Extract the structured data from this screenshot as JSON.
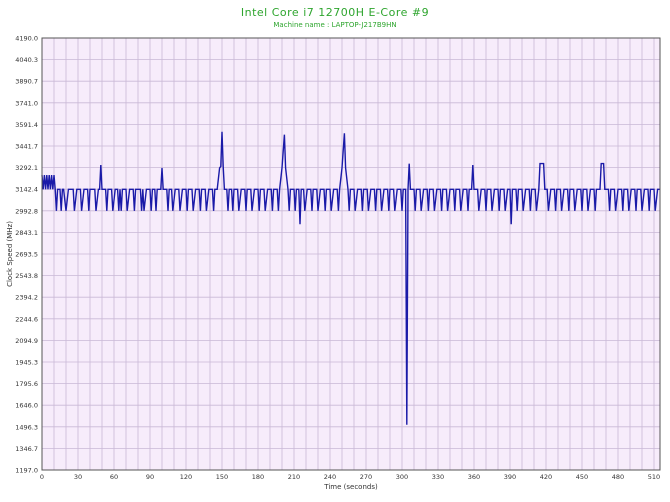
{
  "chart_data": {
    "type": "line",
    "title": "Intel Core i7 12700H E-Core #9",
    "subtitle": "Machine name : LAPTOP-J217B9HN",
    "xlabel": "Time (seconds)",
    "ylabel": "Clock Speed (MHz)",
    "xlim": [
      0,
      515
    ],
    "ylim": [
      1197.0,
      4190.0
    ],
    "x_ticks": [
      0,
      30,
      60,
      90,
      120,
      150,
      180,
      210,
      240,
      270,
      300,
      330,
      360,
      390,
      420,
      450,
      480,
      510
    ],
    "y_ticks": [
      "1197.0",
      "1346.7",
      "1496.3",
      "1646.0",
      "1795.6",
      "1945.3",
      "2094.9",
      "2244.6",
      "2394.2",
      "2543.8",
      "2693.5",
      "2843.1",
      "2992.8",
      "3142.4",
      "3292.1",
      "3441.7",
      "3591.4",
      "3741.0",
      "3890.7",
      "4040.3",
      "4190.0"
    ],
    "grid": true,
    "background": "#f7ecfb",
    "grid_color": "#c9b8d6",
    "line_color": "#1a1aa8",
    "text_color": "#2ea52e",
    "series": [
      {
        "points": [
          [
            0,
            3240
          ],
          [
            1,
            3142
          ],
          [
            2,
            3240
          ],
          [
            3,
            3142
          ],
          [
            4,
            3240
          ],
          [
            5,
            3142
          ],
          [
            6,
            3240
          ],
          [
            7,
            3142
          ],
          [
            8,
            3240
          ],
          [
            9,
            3142
          ],
          [
            10,
            3240
          ],
          [
            11,
            3142
          ],
          [
            12,
            2993
          ],
          [
            13,
            3142
          ],
          [
            14,
            3142
          ],
          [
            15,
            3142
          ],
          [
            16,
            2993
          ],
          [
            17,
            3142
          ],
          [
            18,
            3142
          ],
          [
            20,
            2993
          ],
          [
            22,
            3142
          ],
          [
            26,
            3142
          ],
          [
            27,
            2993
          ],
          [
            29,
            3142
          ],
          [
            32,
            3142
          ],
          [
            33,
            2993
          ],
          [
            35,
            3142
          ],
          [
            38,
            3142
          ],
          [
            39,
            2993
          ],
          [
            40,
            3142
          ],
          [
            44,
            3142
          ],
          [
            45,
            2993
          ],
          [
            47,
            3142
          ],
          [
            48,
            3142
          ],
          [
            49,
            3310
          ],
          [
            50,
            3142
          ],
          [
            53,
            3142
          ],
          [
            54,
            2993
          ],
          [
            55,
            3142
          ],
          [
            58,
            3142
          ],
          [
            59,
            2993
          ],
          [
            61,
            3142
          ],
          [
            63,
            3142
          ],
          [
            64,
            2993
          ],
          [
            65,
            3142
          ],
          [
            66,
            2993
          ],
          [
            67,
            3142
          ],
          [
            70,
            3142
          ],
          [
            71,
            2993
          ],
          [
            73,
            3142
          ],
          [
            76,
            3142
          ],
          [
            77,
            2993
          ],
          [
            78,
            3142
          ],
          [
            82,
            3142
          ],
          [
            83,
            2993
          ],
          [
            84,
            3142
          ],
          [
            85,
            2993
          ],
          [
            87,
            3142
          ],
          [
            90,
            3142
          ],
          [
            91,
            2993
          ],
          [
            92,
            3142
          ],
          [
            94,
            3142
          ],
          [
            95,
            2993
          ],
          [
            96,
            3142
          ],
          [
            99,
            3142
          ],
          [
            100,
            3290
          ],
          [
            101,
            3142
          ],
          [
            104,
            3142
          ],
          [
            105,
            2993
          ],
          [
            106,
            3142
          ],
          [
            108,
            3142
          ],
          [
            109,
            2993
          ],
          [
            111,
            3142
          ],
          [
            114,
            3142
          ],
          [
            115,
            2993
          ],
          [
            117,
            3142
          ],
          [
            120,
            3142
          ],
          [
            121,
            2993
          ],
          [
            122,
            3142
          ],
          [
            125,
            3142
          ],
          [
            126,
            2993
          ],
          [
            128,
            3142
          ],
          [
            131,
            3142
          ],
          [
            132,
            2993
          ],
          [
            133,
            3142
          ],
          [
            136,
            3142
          ],
          [
            137,
            2993
          ],
          [
            139,
            3142
          ],
          [
            142,
            3142
          ],
          [
            143,
            2993
          ],
          [
            144,
            3142
          ],
          [
            146,
            3142
          ],
          [
            148,
            3290
          ],
          [
            149,
            3300
          ],
          [
            150,
            3540
          ],
          [
            151,
            3300
          ],
          [
            152,
            3142
          ],
          [
            154,
            3142
          ],
          [
            155,
            2993
          ],
          [
            156,
            3142
          ],
          [
            158,
            3142
          ],
          [
            159,
            2993
          ],
          [
            160,
            3142
          ],
          [
            163,
            3142
          ],
          [
            164,
            2993
          ],
          [
            166,
            3142
          ],
          [
            169,
            3142
          ],
          [
            170,
            2993
          ],
          [
            171,
            3142
          ],
          [
            174,
            3142
          ],
          [
            175,
            2993
          ],
          [
            177,
            3142
          ],
          [
            180,
            3142
          ],
          [
            181,
            2993
          ],
          [
            182,
            3142
          ],
          [
            185,
            3142
          ],
          [
            186,
            2993
          ],
          [
            188,
            3142
          ],
          [
            191,
            3142
          ],
          [
            192,
            2993
          ],
          [
            193,
            3142
          ],
          [
            196,
            3142
          ],
          [
            197,
            2993
          ],
          [
            198,
            3142
          ],
          [
            200,
            3290
          ],
          [
            202,
            3520
          ],
          [
            203,
            3290
          ],
          [
            205,
            3142
          ],
          [
            206,
            2993
          ],
          [
            207,
            3142
          ],
          [
            210,
            3142
          ],
          [
            211,
            2993
          ],
          [
            212,
            3142
          ],
          [
            214,
            3142
          ],
          [
            215,
            2900
          ],
          [
            216,
            3142
          ],
          [
            218,
            3142
          ],
          [
            219,
            2993
          ],
          [
            221,
            3142
          ],
          [
            224,
            3142
          ],
          [
            225,
            2993
          ],
          [
            226,
            3142
          ],
          [
            229,
            3142
          ],
          [
            230,
            2993
          ],
          [
            232,
            3142
          ],
          [
            235,
            3142
          ],
          [
            236,
            2993
          ],
          [
            237,
            3142
          ],
          [
            240,
            3142
          ],
          [
            241,
            2993
          ],
          [
            243,
            3142
          ],
          [
            246,
            3142
          ],
          [
            247,
            2993
          ],
          [
            248,
            3142
          ],
          [
            250,
            3290
          ],
          [
            252,
            3530
          ],
          [
            253,
            3290
          ],
          [
            255,
            3142
          ],
          [
            256,
            2993
          ],
          [
            257,
            3142
          ],
          [
            260,
            3142
          ],
          [
            261,
            2993
          ],
          [
            263,
            3142
          ],
          [
            266,
            3142
          ],
          [
            267,
            2993
          ],
          [
            268,
            3142
          ],
          [
            271,
            3142
          ],
          [
            272,
            2993
          ],
          [
            274,
            3142
          ],
          [
            277,
            3142
          ],
          [
            278,
            2993
          ],
          [
            279,
            3142
          ],
          [
            282,
            3142
          ],
          [
            283,
            2993
          ],
          [
            285,
            3142
          ],
          [
            288,
            3142
          ],
          [
            289,
            2993
          ],
          [
            290,
            3142
          ],
          [
            293,
            3142
          ],
          [
            294,
            2993
          ],
          [
            296,
            3142
          ],
          [
            299,
            3142
          ],
          [
            300,
            2993
          ],
          [
            301,
            3142
          ],
          [
            303,
            3142
          ],
          [
            304,
            1510
          ],
          [
            305,
            3142
          ],
          [
            306,
            3320
          ],
          [
            307,
            3142
          ],
          [
            310,
            3142
          ],
          [
            311,
            2993
          ],
          [
            312,
            3142
          ],
          [
            315,
            3142
          ],
          [
            316,
            2993
          ],
          [
            318,
            3142
          ],
          [
            321,
            3142
          ],
          [
            322,
            2993
          ],
          [
            323,
            3142
          ],
          [
            326,
            3142
          ],
          [
            327,
            2993
          ],
          [
            329,
            3142
          ],
          [
            332,
            3142
          ],
          [
            333,
            2993
          ],
          [
            334,
            3142
          ],
          [
            337,
            3142
          ],
          [
            338,
            2993
          ],
          [
            340,
            3142
          ],
          [
            343,
            3142
          ],
          [
            344,
            2993
          ],
          [
            345,
            3142
          ],
          [
            348,
            3142
          ],
          [
            349,
            2993
          ],
          [
            351,
            3142
          ],
          [
            354,
            3142
          ],
          [
            355,
            2993
          ],
          [
            356,
            3142
          ],
          [
            358,
            3142
          ],
          [
            359,
            3310
          ],
          [
            360,
            3142
          ],
          [
            363,
            3142
          ],
          [
            364,
            2993
          ],
          [
            366,
            3142
          ],
          [
            369,
            3142
          ],
          [
            370,
            2993
          ],
          [
            371,
            3142
          ],
          [
            374,
            3142
          ],
          [
            375,
            2993
          ],
          [
            377,
            3142
          ],
          [
            380,
            3142
          ],
          [
            381,
            2993
          ],
          [
            382,
            3142
          ],
          [
            385,
            3142
          ],
          [
            386,
            2993
          ],
          [
            388,
            3142
          ],
          [
            390,
            3142
          ],
          [
            391,
            2900
          ],
          [
            392,
            3142
          ],
          [
            395,
            3142
          ],
          [
            396,
            2993
          ],
          [
            397,
            3142
          ],
          [
            400,
            3142
          ],
          [
            401,
            2993
          ],
          [
            403,
            3142
          ],
          [
            406,
            3142
          ],
          [
            407,
            2993
          ],
          [
            408,
            3142
          ],
          [
            411,
            3142
          ],
          [
            412,
            2993
          ],
          [
            414,
            3142
          ],
          [
            415,
            3320
          ],
          [
            418,
            3320
          ],
          [
            419,
            3142
          ],
          [
            421,
            3142
          ],
          [
            422,
            2993
          ],
          [
            424,
            3142
          ],
          [
            427,
            3142
          ],
          [
            428,
            2993
          ],
          [
            429,
            3142
          ],
          [
            432,
            3142
          ],
          [
            433,
            2993
          ],
          [
            435,
            3142
          ],
          [
            438,
            3142
          ],
          [
            439,
            2993
          ],
          [
            440,
            3142
          ],
          [
            443,
            3142
          ],
          [
            444,
            2993
          ],
          [
            446,
            3142
          ],
          [
            449,
            3142
          ],
          [
            450,
            2993
          ],
          [
            451,
            3142
          ],
          [
            454,
            3142
          ],
          [
            455,
            2993
          ],
          [
            457,
            3142
          ],
          [
            460,
            3142
          ],
          [
            461,
            2993
          ],
          [
            462,
            3142
          ],
          [
            465,
            3142
          ],
          [
            466,
            3320
          ],
          [
            468,
            3320
          ],
          [
            469,
            3142
          ],
          [
            472,
            3142
          ],
          [
            473,
            2993
          ],
          [
            474,
            3142
          ],
          [
            477,
            3142
          ],
          [
            478,
            2993
          ],
          [
            480,
            3142
          ],
          [
            483,
            3142
          ],
          [
            484,
            2993
          ],
          [
            485,
            3142
          ],
          [
            488,
            3142
          ],
          [
            489,
            2993
          ],
          [
            491,
            3142
          ],
          [
            494,
            3142
          ],
          [
            495,
            2993
          ],
          [
            496,
            3142
          ],
          [
            499,
            3142
          ],
          [
            500,
            2993
          ],
          [
            502,
            3142
          ],
          [
            505,
            3142
          ],
          [
            506,
            2993
          ],
          [
            507,
            3142
          ],
          [
            510,
            3142
          ],
          [
            511,
            2993
          ],
          [
            513,
            3142
          ],
          [
            515,
            3142
          ]
        ]
      }
    ]
  }
}
